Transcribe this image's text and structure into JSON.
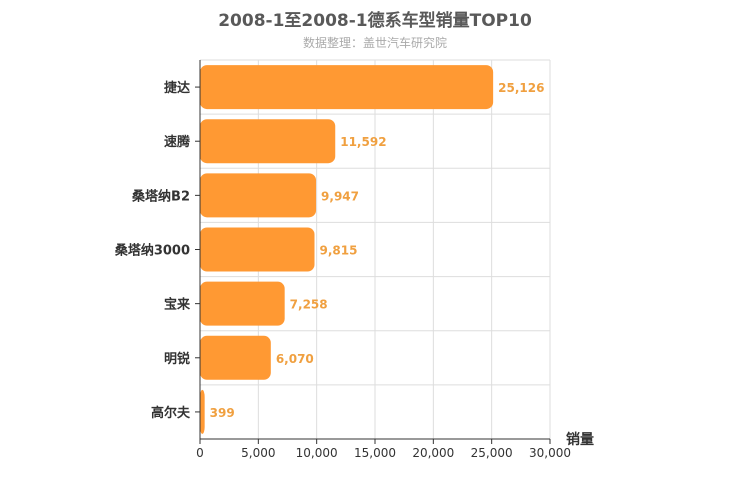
{
  "chart_data": {
    "type": "bar",
    "orientation": "horizontal",
    "title": "2008-1至2008-1德系车型销量TOP10",
    "subtitle": "数据整理：盖世汽车研究院",
    "categories": [
      "捷达",
      "速腾",
      "桑塔纳B2",
      "桑塔纳3000",
      "宝来",
      "明锐",
      "高尔夫"
    ],
    "values": [
      25126,
      11592,
      9947,
      9815,
      7258,
      6070,
      399
    ],
    "value_labels": [
      "25,126",
      "11,592",
      "9,947",
      "9,815",
      "7,258",
      "6,070",
      "399"
    ],
    "xlabel": "销量",
    "ylabel": "",
    "xlim": [
      0,
      30000
    ],
    "xticks": [
      "0",
      "5,000",
      "10,000",
      "15,000",
      "20,000",
      "25,000",
      "30,000"
    ],
    "grid": true,
    "bar_color": "#ff9933",
    "label_color": "#f0a040"
  }
}
